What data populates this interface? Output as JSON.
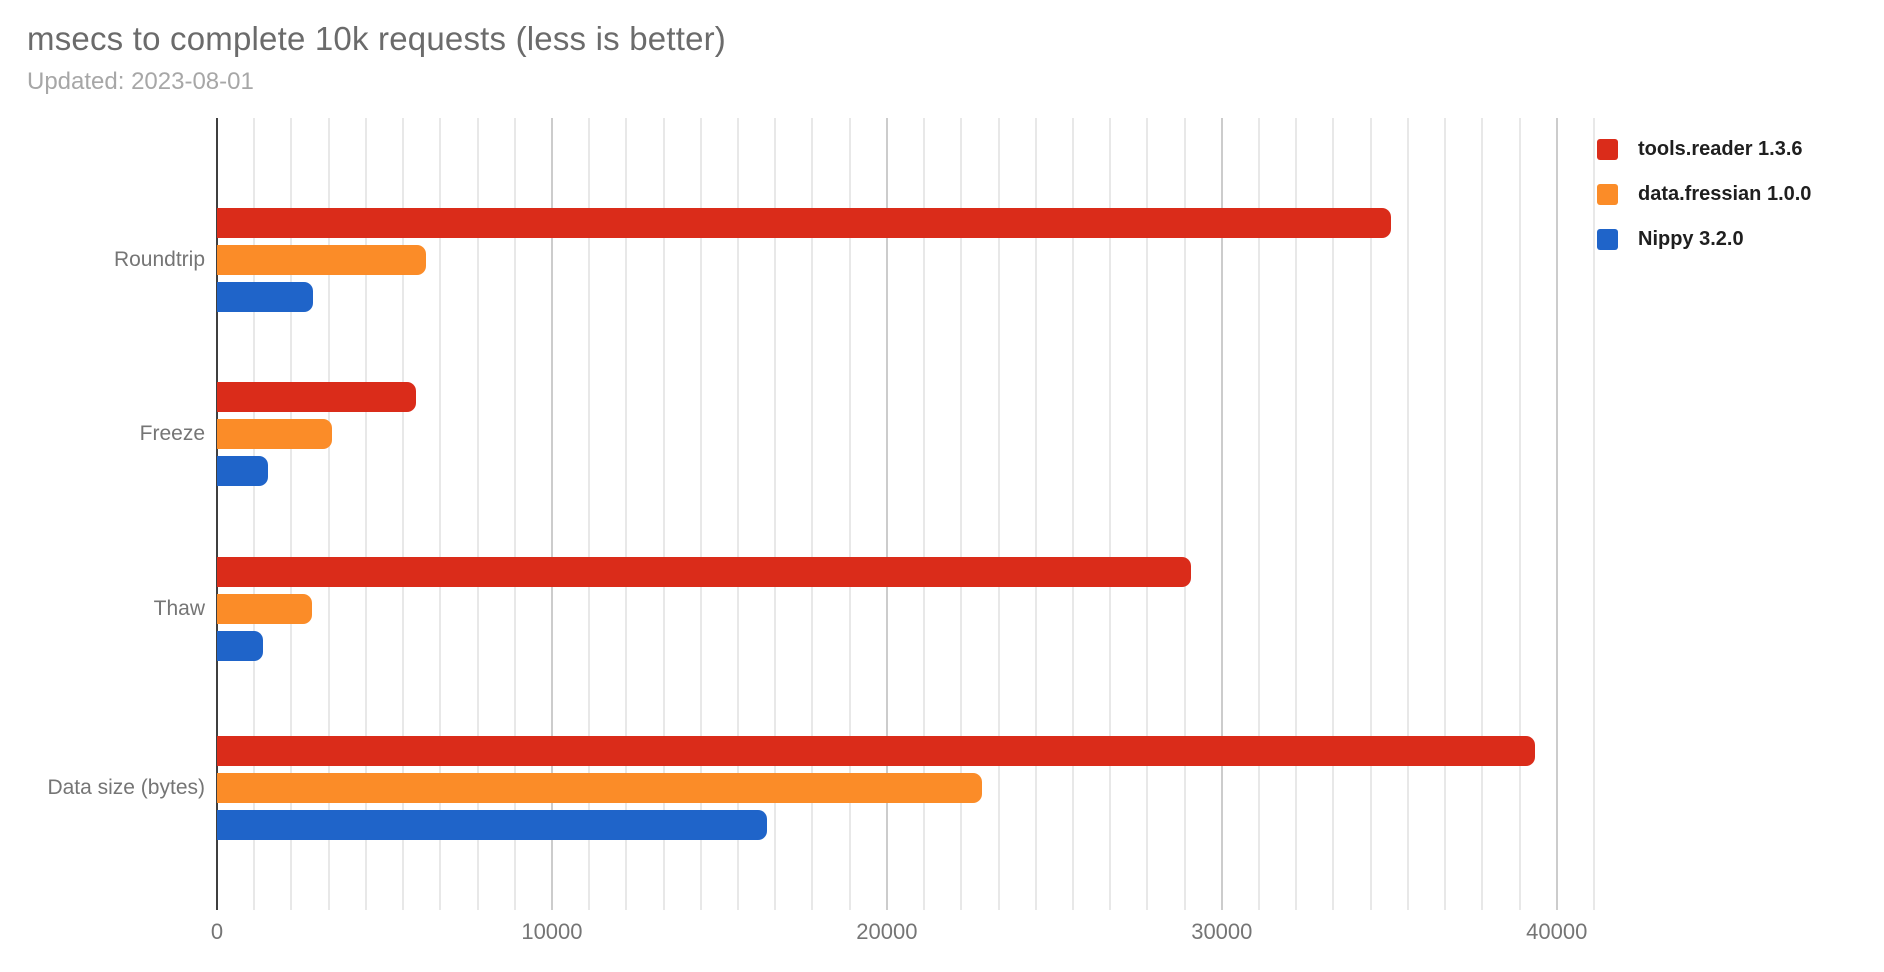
{
  "header": {
    "title": "msecs to complete 10k requests (less is better)",
    "subtitle": "Updated: 2023-08-01"
  },
  "chart_data": {
    "type": "bar",
    "orientation": "horizontal",
    "title": "msecs to complete 10k requests (less is better)",
    "subtitle": "Updated: 2023-08-01",
    "categories": [
      "Roundtrip",
      "Freeze",
      "Thaw",
      "Data size (bytes)"
    ],
    "series": [
      {
        "name": "tools.reader 1.3.6",
        "color": "#da2c1a",
        "values": [
          35050,
          5940,
          29080,
          39350
        ]
      },
      {
        "name": "data.fressian 1.0.0",
        "color": "#fb8c28",
        "values": [
          6230,
          3420,
          2850,
          22830
        ]
      },
      {
        "name": "Nippy 3.2.0",
        "color": "#1f64c9",
        "values": [
          2860,
          1520,
          1360,
          16430
        ]
      }
    ],
    "xaxis": {
      "min": 0,
      "max": 41650,
      "tick_step": 10000,
      "tick_labels": [
        "0",
        "10000",
        "20000",
        "30000",
        "40000"
      ],
      "minor_gridlines_per_major": 9,
      "gridlines": true
    },
    "legend_position": "right",
    "colors": {
      "title_text": "#6b6b6b",
      "subtitle_text": "#a7a7a7",
      "axis_label_text": "#757575",
      "legend_text": "#1f1f1f",
      "minor_gridline": "#e8e8e8",
      "major_gridline": "#cccccc",
      "axis_line": "#3f3f3f",
      "background": "#ffffff"
    }
  }
}
